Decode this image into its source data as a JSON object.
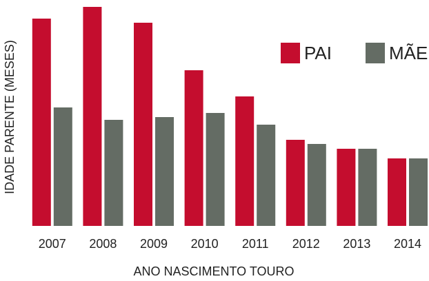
{
  "chart_data": {
    "type": "bar",
    "x_label": "ANO NASCIMENTO TOURO",
    "y_label": "IDADE PARENTE (MESES)",
    "categories": [
      "2007",
      "2008",
      "2009",
      "2010",
      "2011",
      "2012",
      "2013",
      "2014"
    ],
    "series": [
      {
        "name": "PAI",
        "color": "#c40d2e",
        "values": [
          301,
          318,
          295,
          226,
          188,
          125,
          112,
          98
        ]
      },
      {
        "name": "MÃE",
        "color": "#646c64",
        "values": [
          172,
          154,
          158,
          164,
          147,
          119,
          112,
          98
        ]
      }
    ],
    "ylim": [
      0,
      320
    ],
    "legend": "top-right"
  }
}
